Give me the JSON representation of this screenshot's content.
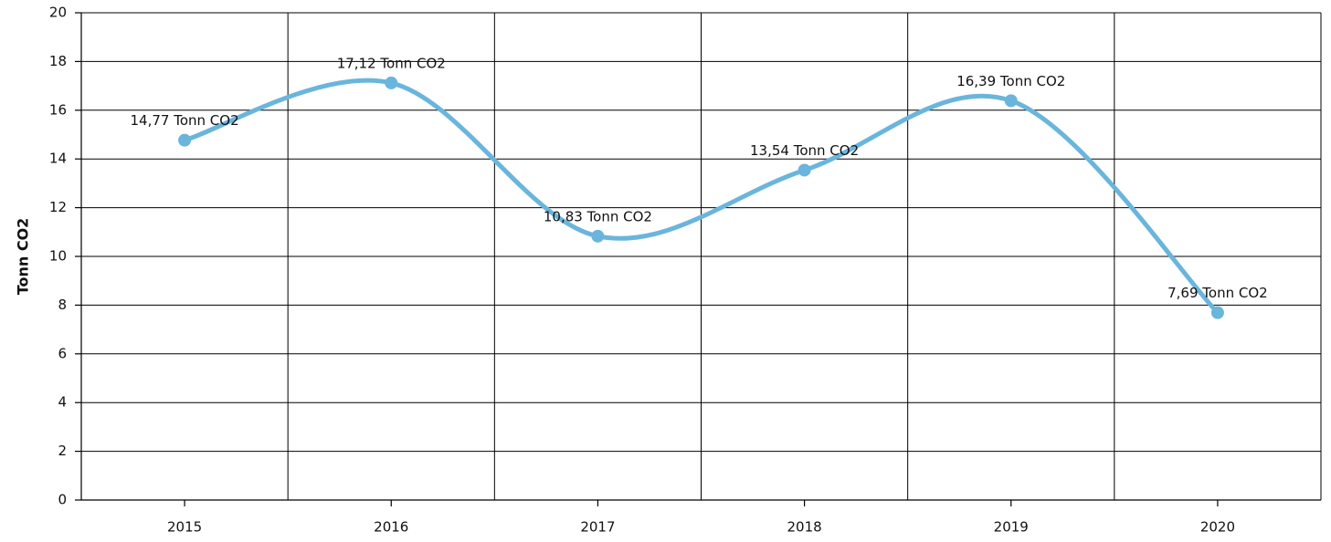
{
  "chart_data": {
    "type": "line",
    "y_label": "Tonn CO2",
    "categories": [
      "2015",
      "2016",
      "2017",
      "2018",
      "2019",
      "2020"
    ],
    "series": [
      {
        "name": "Tonn CO2",
        "color": "#6ab5dc",
        "values": [
          14.77,
          17.12,
          10.83,
          13.54,
          16.39,
          7.69
        ],
        "value_labels": [
          "14,77 Tonn CO2",
          "17,12 Tonn CO2",
          "10,83 Tonn CO2",
          "13,54 Tonn CO2",
          "16,39 Tonn CO2",
          "7,69 Tonn CO2"
        ]
      }
    ],
    "ylim": [
      0,
      20
    ],
    "yticks": [
      0,
      2,
      4,
      6,
      8,
      10,
      12,
      14,
      16,
      18,
      20
    ],
    "grid": true,
    "smooth": true
  }
}
